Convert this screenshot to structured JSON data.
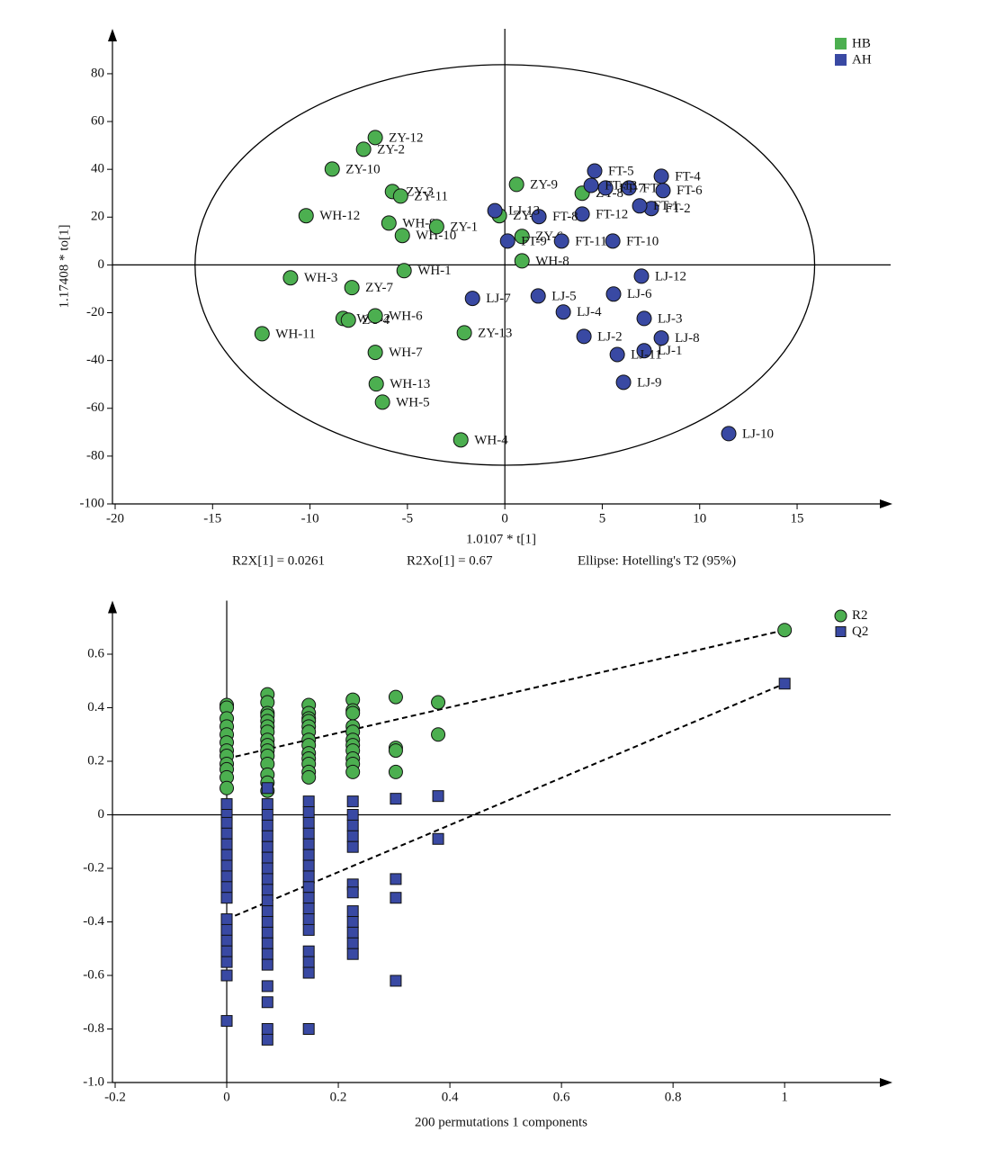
{
  "chart_data": [
    {
      "type": "scatter",
      "xlabel": "1.0107 * t[1]",
      "ylabel": "1.17408 * to[1]",
      "annotations": [
        "R2X[1] = 0.0261",
        "R2Xo[1] = 0.67",
        "Ellipse: Hotelling's T2 (95%)"
      ],
      "xlim": [
        -20,
        19.8
      ],
      "ylim": [
        -100,
        98.8
      ],
      "xticks": [
        -20,
        -15,
        -10,
        -5,
        0,
        5,
        10,
        15
      ],
      "yticks": [
        -100,
        -80,
        -60,
        -40,
        -20,
        0,
        20,
        40,
        60,
        80
      ],
      "ellipse": {
        "rx": 15.9,
        "ry": 83.8
      },
      "legend": "upper right",
      "marker_labels": true,
      "series": [
        {
          "name": "HB",
          "color": "#4caf50",
          "marker": "circle",
          "labels": [
            "ZY-12",
            "ZY-2",
            "ZY-10",
            "ZY-3",
            "ZY-11",
            "WH-12",
            "WH-9",
            "WH-10",
            "ZY-1",
            "ZY-9",
            "ZY-5",
            "ZY-8",
            "ZY-6",
            "WH-8",
            "WH-1",
            "WH-3",
            "ZY-7",
            "WH-2",
            "ZY-4",
            "WH-6",
            "WH-11",
            "ZY-13",
            "WH-7",
            "WH-13",
            "WH-5",
            "WH-4"
          ],
          "x": [
            -6.65,
            -7.25,
            -8.86,
            -5.77,
            -5.35,
            -10.2,
            -5.95,
            -5.26,
            -3.5,
            0.6,
            -0.28,
            3.97,
            0.88,
            0.88,
            -5.17,
            -11.0,
            -7.85,
            -8.3,
            -8.03,
            -6.65,
            -12.46,
            -2.08,
            -6.65,
            -6.6,
            -6.28,
            -2.26
          ],
          "y": [
            53.3,
            48.4,
            40.1,
            30.7,
            28.8,
            20.6,
            17.5,
            12.3,
            16.0,
            33.7,
            20.6,
            30.0,
            11.9,
            1.7,
            -2.4,
            -5.4,
            -9.5,
            -22.4,
            -23.1,
            -21.3,
            -28.8,
            -28.4,
            -36.6,
            -49.8,
            -57.4,
            -73.2
          ]
        },
        {
          "name": "AH",
          "color": "#3949a3",
          "marker": "circle",
          "labels": [
            "FT-5",
            "FT-4",
            "FT-3",
            "FT-7",
            "FT-13",
            "FT-6",
            "FT-2",
            "FT-1",
            "FT-12",
            "FT-8",
            "FT-11",
            "FT-10",
            "FT-9",
            "LJ-13",
            "LJ-12",
            "LJ-6",
            "LJ-7",
            "LJ-5",
            "LJ-4",
            "LJ-3",
            "LJ-2",
            "LJ-8",
            "LJ-1",
            "LJ-11",
            "LJ-9",
            "LJ-10"
          ],
          "x": [
            4.61,
            8.03,
            6.37,
            5.17,
            4.43,
            8.12,
            7.52,
            6.92,
            3.97,
            1.75,
            2.91,
            5.54,
            0.14,
            -0.51,
            7.01,
            5.58,
            -1.66,
            1.71,
            3.0,
            7.15,
            4.06,
            8.03,
            7.15,
            5.77,
            6.09,
            11.49
          ],
          "y": [
            39.3,
            37.1,
            32.2,
            32.2,
            33.3,
            31.1,
            23.6,
            24.7,
            21.3,
            20.2,
            10.0,
            10.0,
            10.0,
            22.7,
            -4.7,
            -12.2,
            -14.0,
            -13.0,
            -19.7,
            -22.4,
            -29.9,
            -30.6,
            -35.9,
            -37.5,
            -49.1,
            -70.6
          ]
        }
      ]
    },
    {
      "type": "scatter",
      "xlabel": "200 permutations 1 components",
      "xlim": [
        -0.2,
        1.19
      ],
      "ylim": [
        -1.0,
        0.8
      ],
      "xticks": [
        -0.2,
        0,
        0.2,
        0.4,
        0.6,
        0.8,
        1
      ],
      "yticks": [
        {
          "value": -1.0,
          "label": "-1.0"
        },
        -0.8,
        -0.6,
        -0.4,
        -0.2,
        0,
        0.2,
        0.4,
        0.6
      ],
      "legend": "upper right",
      "marker_labels": false,
      "series": [
        {
          "name": "R2",
          "color": "#4caf50",
          "marker": "circle",
          "intercept": 0.21,
          "x": [
            0,
            0,
            0,
            0,
            0,
            0,
            0,
            0,
            0,
            0,
            0,
            0,
            0.073,
            0.073,
            0.073,
            0.073,
            0.073,
            0.073,
            0.073,
            0.073,
            0.073,
            0.073,
            0.073,
            0.073,
            0.073,
            0.073,
            0.073,
            0.147,
            0.147,
            0.147,
            0.147,
            0.147,
            0.147,
            0.147,
            0.147,
            0.147,
            0.147,
            0.147,
            0.147,
            0.147,
            0.226,
            0.226,
            0.226,
            0.226,
            0.226,
            0.226,
            0.226,
            0.226,
            0.226,
            0.226,
            0.226,
            0.303,
            0.303,
            0.303,
            0.303,
            0.379,
            0.379,
            1.0
          ],
          "y": [
            0.41,
            0.4,
            0.36,
            0.33,
            0.3,
            0.27,
            0.24,
            0.22,
            0.19,
            0.17,
            0.14,
            0.1,
            0.45,
            0.42,
            0.38,
            0.37,
            0.35,
            0.33,
            0.31,
            0.28,
            0.26,
            0.24,
            0.22,
            0.19,
            0.15,
            0.12,
            0.09,
            0.41,
            0.38,
            0.36,
            0.35,
            0.33,
            0.31,
            0.28,
            0.26,
            0.23,
            0.21,
            0.19,
            0.16,
            0.14,
            0.43,
            0.39,
            0.38,
            0.33,
            0.31,
            0.28,
            0.26,
            0.24,
            0.21,
            0.19,
            0.16,
            0.44,
            0.25,
            0.24,
            0.16,
            0.42,
            0.3,
            0.69
          ]
        },
        {
          "name": "Q2",
          "color": "#3949a3",
          "marker": "square",
          "intercept": -0.39,
          "x": [
            0,
            0,
            0,
            0,
            0,
            0,
            0,
            0,
            0,
            0,
            0,
            0,
            0,
            0,
            0,
            0,
            0,
            0.073,
            0.073,
            0.073,
            0.073,
            0.073,
            0.073,
            0.073,
            0.073,
            0.073,
            0.073,
            0.073,
            0.073,
            0.073,
            0.073,
            0.073,
            0.073,
            0.073,
            0.073,
            0.073,
            0.073,
            0.073,
            0.147,
            0.147,
            0.147,
            0.147,
            0.147,
            0.147,
            0.147,
            0.147,
            0.147,
            0.147,
            0.147,
            0.147,
            0.147,
            0.147,
            0.147,
            0.147,
            0.147,
            0.226,
            0.226,
            0.226,
            0.226,
            0.226,
            0.226,
            0.226,
            0.226,
            0.226,
            0.226,
            0.226,
            0.226,
            0.303,
            0.303,
            0.303,
            0.303,
            0.379,
            0.379,
            1.0
          ],
          "y": [
            0.04,
            0.0,
            -0.03,
            -0.07,
            -0.11,
            -0.15,
            -0.19,
            -0.23,
            -0.27,
            -0.31,
            -0.39,
            -0.43,
            -0.47,
            -0.51,
            -0.55,
            -0.6,
            -0.77,
            0.1,
            0.04,
            0.0,
            -0.04,
            -0.08,
            -0.12,
            -0.16,
            -0.2,
            -0.24,
            -0.28,
            -0.32,
            -0.36,
            -0.4,
            -0.44,
            -0.48,
            -0.52,
            -0.56,
            -0.64,
            -0.7,
            -0.8,
            -0.84,
            0.05,
            0.01,
            -0.03,
            -0.07,
            -0.11,
            -0.15,
            -0.19,
            -0.23,
            -0.27,
            -0.31,
            -0.35,
            -0.39,
            -0.43,
            -0.51,
            -0.55,
            -0.59,
            -0.8,
            0.05,
            0.0,
            -0.04,
            -0.08,
            -0.12,
            -0.26,
            -0.29,
            -0.36,
            -0.4,
            -0.44,
            -0.48,
            -0.52,
            0.06,
            -0.24,
            -0.31,
            -0.62,
            0.07,
            -0.09,
            0.49
          ]
        }
      ]
    }
  ]
}
